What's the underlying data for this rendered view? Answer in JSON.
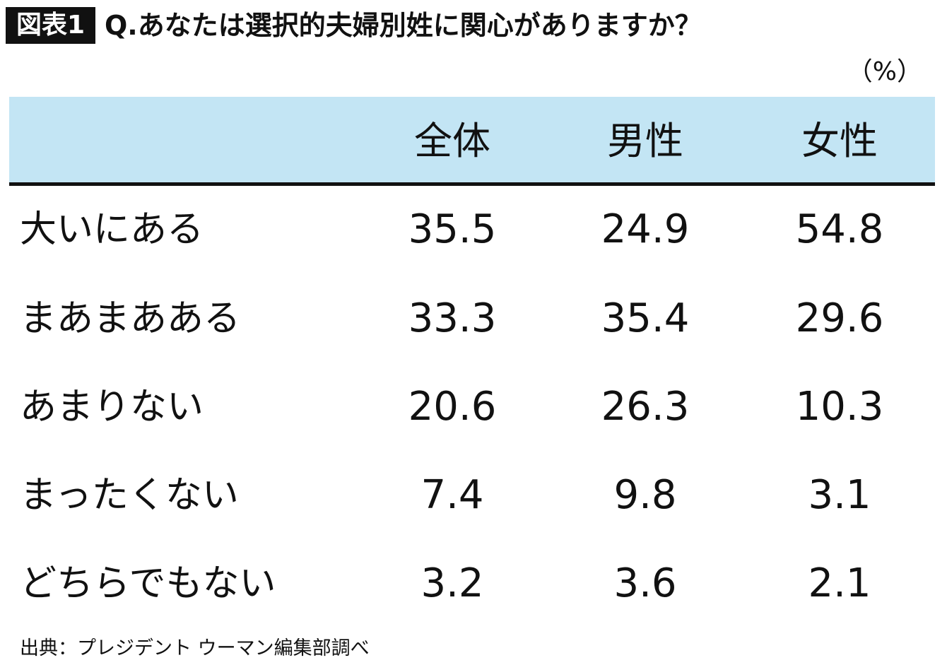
{
  "header": {
    "badge": "図表1",
    "title": "Q.あなたは選択的夫婦別姓に関心がありますか？",
    "unit": "（%）"
  },
  "table": {
    "columns": [
      "全体",
      "男性",
      "女性"
    ],
    "rows": [
      {
        "label": "大いにある",
        "values": [
          35.5,
          24.9,
          54.8
        ]
      },
      {
        "label": "まあまあある",
        "values": [
          33.3,
          35.4,
          29.6
        ]
      },
      {
        "label": "あまりない",
        "values": [
          20.6,
          26.3,
          10.3
        ]
      },
      {
        "label": "まったくない",
        "values": [
          7.4,
          9.8,
          3.1
        ]
      },
      {
        "label": "どちらでもない",
        "values": [
          3.2,
          3.6,
          2.1
        ]
      }
    ]
  },
  "footer": {
    "source": "出典：プレジデント ウーマン編集部調べ"
  }
}
